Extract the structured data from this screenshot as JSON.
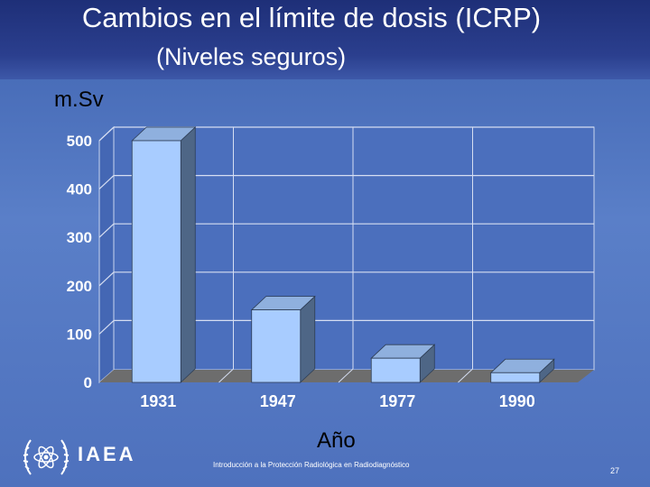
{
  "slide": {
    "title": "Cambios en el límite de dosis (ICRP)",
    "subtitle": "(Niveles seguros)",
    "footer_text": "Introducción a la Protección Radiológica en Radiodiagnóstico",
    "page_number": "27",
    "logo_text": "IAEA"
  },
  "colors": {
    "background": "#5a7fc8",
    "header": "#2b3f8e",
    "bar_front": "#a8ccff",
    "bar_top": "#8fb0de",
    "bar_side": "#4e6686",
    "plot_wall": "#4b6fbd",
    "floor": "#6d6d6d",
    "text": "#ffffff"
  },
  "chart_data": {
    "type": "bar",
    "categories": [
      "1931",
      "1947",
      "1977",
      "1990"
    ],
    "values": [
      500,
      150,
      50,
      20
    ],
    "ylabel": "m.Sv",
    "xlabel": "Año",
    "ylim": [
      0,
      500
    ],
    "yticks": [
      "0",
      "100",
      "200",
      "300",
      "400",
      "500"
    ],
    "grid": true,
    "style": "3d"
  }
}
